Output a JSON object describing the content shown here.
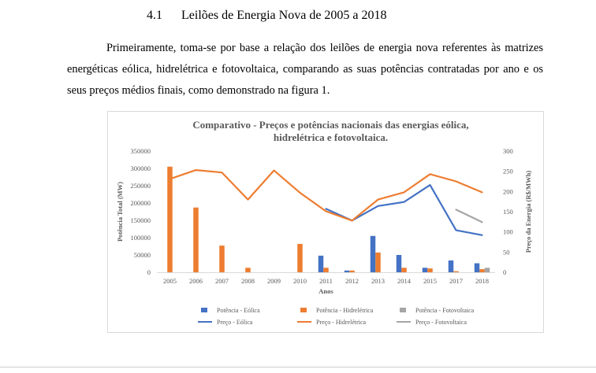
{
  "section": {
    "number": "4.1",
    "title": "Leilões de Energia Nova de 2005 a 2018"
  },
  "paragraph": "Primeiramente, toma-se por base a relação dos leilões de energia nova referentes às matrizes energéticas eólica, hidrelétrica e fotovoltaica, comparando as suas potências contratadas por ano e os seus preços médios finais, como demonstrado na figura 1.",
  "chart_data": {
    "type": "bar",
    "title_lines": [
      "Comparativo - Preços e potências nacionais das energias eólica,",
      "hidrelétrica e fotovoltaica."
    ],
    "xlabel": "Anos",
    "ylabel": "Potência Total (MW)",
    "y2label": "Preço da Energia (R$/MWh)",
    "ylim": [
      0,
      350000
    ],
    "y2lim": [
      0,
      300
    ],
    "yticks": [
      "0",
      "50000",
      "100000",
      "150000",
      "200000",
      "250000",
      "300000",
      "350000"
    ],
    "y2ticks": [
      "0",
      "50",
      "100",
      "150",
      "200",
      "250",
      "300"
    ],
    "grid": false,
    "legend_position": "bottom",
    "categories": [
      "2005",
      "2006",
      "2007",
      "2008",
      "2009",
      "2010",
      "2011",
      "2012",
      "2013",
      "2014",
      "2015",
      "2017",
      "2018"
    ],
    "bar_series": [
      {
        "name": "Potência - Eólica",
        "color": "#4472c4",
        "values": [
          0,
          0,
          0,
          0,
          0,
          0,
          48000,
          5000,
          105000,
          50000,
          13000,
          34000,
          26000
        ]
      },
      {
        "name": "Potência - Hidrelétrica",
        "color": "#ed7d31",
        "values": [
          305000,
          187000,
          77000,
          13000,
          0,
          82000,
          13000,
          5000,
          57000,
          13000,
          11000,
          3000,
          9000
        ]
      },
      {
        "name": "Potência - Fotovoltaica",
        "color": "#a5a5a5",
        "values": [
          0,
          0,
          0,
          0,
          0,
          0,
          0,
          0,
          0,
          0,
          0,
          0,
          13000
        ]
      }
    ],
    "line_series": [
      {
        "name": "Preço - Eólica",
        "color": "#4472c4",
        "values": [
          null,
          null,
          null,
          null,
          null,
          null,
          157,
          128,
          164,
          174,
          216,
          104,
          92
        ]
      },
      {
        "name": "Preço - Hidrelétrica",
        "color": "#ed7d31",
        "values": [
          231,
          253,
          247,
          180,
          252,
          197,
          151,
          128,
          180,
          198,
          243,
          225,
          198
        ]
      },
      {
        "name": "Preço - Fotovoltaica",
        "color": "#a5a5a5",
        "values": [
          null,
          null,
          null,
          null,
          null,
          null,
          null,
          null,
          null,
          null,
          null,
          155,
          124
        ]
      }
    ]
  }
}
